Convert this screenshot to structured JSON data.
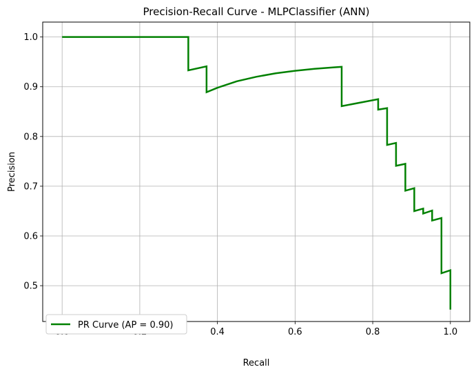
{
  "chart_data": {
    "type": "line",
    "title": "Precision-Recall Curve - MLPClassifier (ANN)",
    "xlabel": "Recall",
    "ylabel": "Precision",
    "xlim": [
      -0.05,
      1.05
    ],
    "ylim": [
      0.428,
      1.03
    ],
    "xticks": [
      0.0,
      0.2,
      0.4,
      0.6,
      0.8,
      1.0
    ],
    "xtick_labels": [
      "0.0",
      "0.2",
      "0.4",
      "0.6",
      "0.8",
      "1.0"
    ],
    "yticks": [
      0.5,
      0.6,
      0.7,
      0.8,
      0.9,
      1.0
    ],
    "ytick_labels": [
      "0.5",
      "0.6",
      "0.7",
      "0.8",
      "0.9",
      "1.0"
    ],
    "grid": true,
    "legend_position": "lower-left",
    "series": [
      {
        "name": "PR Curve (AP = 0.90)",
        "color": "#008000",
        "x": [
          0.0,
          0.325,
          0.325,
          0.372,
          0.372,
          0.4,
          0.45,
          0.5,
          0.55,
          0.6,
          0.65,
          0.7,
          0.72,
          0.72,
          0.814,
          0.814,
          0.837,
          0.837,
          0.86,
          0.86,
          0.884,
          0.884,
          0.907,
          0.907,
          0.93,
          0.93,
          0.953,
          0.953,
          0.977,
          0.977,
          1.0,
          1.0
        ],
        "y": [
          1.0,
          1.0,
          0.933,
          0.941,
          0.889,
          0.898,
          0.911,
          0.92,
          0.927,
          0.932,
          0.936,
          0.939,
          0.94,
          0.861,
          0.875,
          0.854,
          0.857,
          0.783,
          0.787,
          0.741,
          0.745,
          0.691,
          0.696,
          0.65,
          0.655,
          0.645,
          0.651,
          0.631,
          0.636,
          0.525,
          0.531,
          0.452
        ]
      }
    ]
  }
}
